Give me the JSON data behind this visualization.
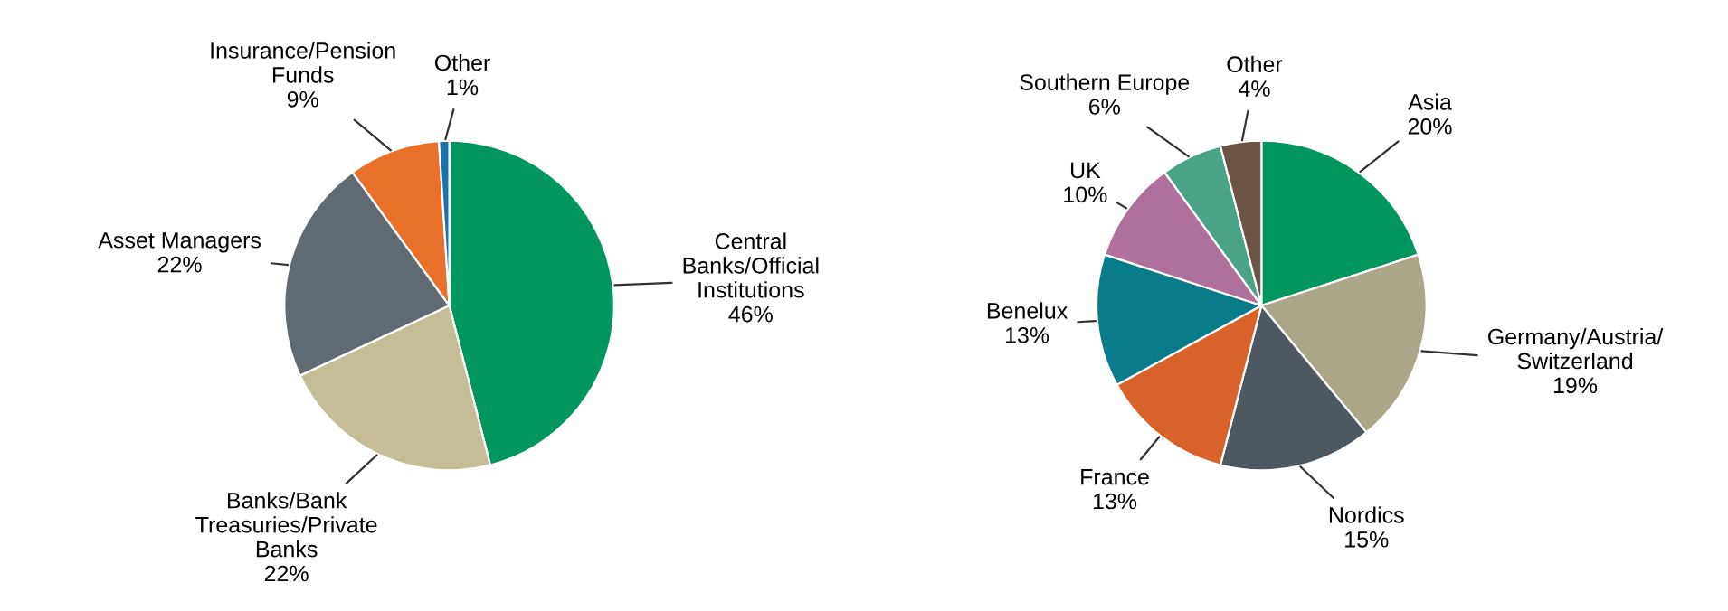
{
  "chart_data": [
    {
      "type": "pie",
      "categories": [
        "Central\nBanks/Official\nInstitutions",
        "Banks/Bank\nTreasuries/Private\nBanks",
        "Asset Managers",
        "Insurance/Pension\nFunds",
        "Other"
      ],
      "values": [
        46,
        22,
        22,
        9,
        1
      ],
      "value_labels": [
        "46%",
        "22%",
        "22%",
        "9%",
        "1%"
      ],
      "colors": [
        "#00965e",
        "#c4bd97",
        "#5f6a72",
        "#e8702a",
        "#1f6fa8"
      ]
    },
    {
      "type": "pie",
      "categories": [
        "Asia",
        "Germany/Austria/\nSwitzerland",
        "Nordics",
        "France",
        "Benelux",
        "UK",
        "Southern Europe",
        "Other"
      ],
      "values": [
        20,
        19,
        15,
        13,
        13,
        10,
        6,
        4
      ],
      "value_labels": [
        "20%",
        "19%",
        "15%",
        "13%",
        "13%",
        "10%",
        "6%",
        "4%"
      ],
      "colors": [
        "#00965e",
        "#aba58a",
        "#4d5860",
        "#d9622b",
        "#0a7b8a",
        "#b0709c",
        "#4aa386",
        "#6b5345"
      ]
    }
  ]
}
